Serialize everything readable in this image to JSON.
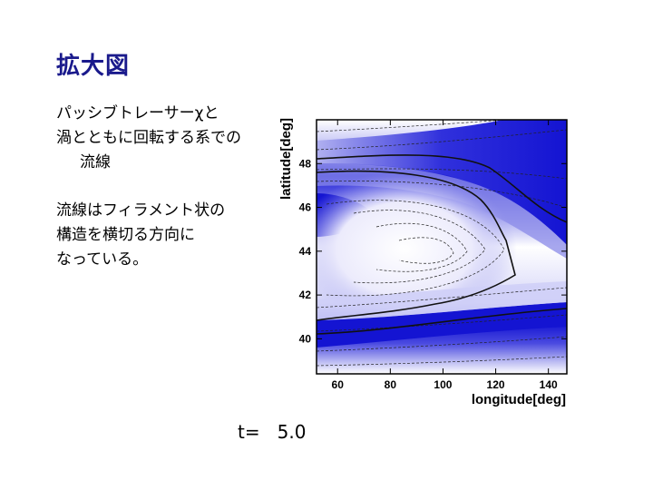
{
  "slide": {
    "title": "拡大図",
    "paragraph1": [
      "パッシブトレーサーχと",
      "渦とともに回転する系での",
      "流線"
    ],
    "paragraph2": [
      "流線はフィラメント状の",
      "構造を横切る方向に",
      "なっている。"
    ],
    "time_label": "t=   5.0"
  },
  "plot": {
    "xlabel": "longitude[deg]",
    "ylabel": "latitude[deg]",
    "xlim": [
      52,
      147
    ],
    "ylim": [
      38.4,
      50
    ],
    "xticks": [
      "60",
      "80",
      "100",
      "120",
      "140"
    ],
    "yticks": [
      "40",
      "42",
      "44",
      "46",
      "48"
    ],
    "colors": {
      "fill_dark": "#1414d2",
      "fill_mid": "#6a6ae6",
      "fill_light": "#c8c8f6",
      "contour": "#111111"
    }
  }
}
